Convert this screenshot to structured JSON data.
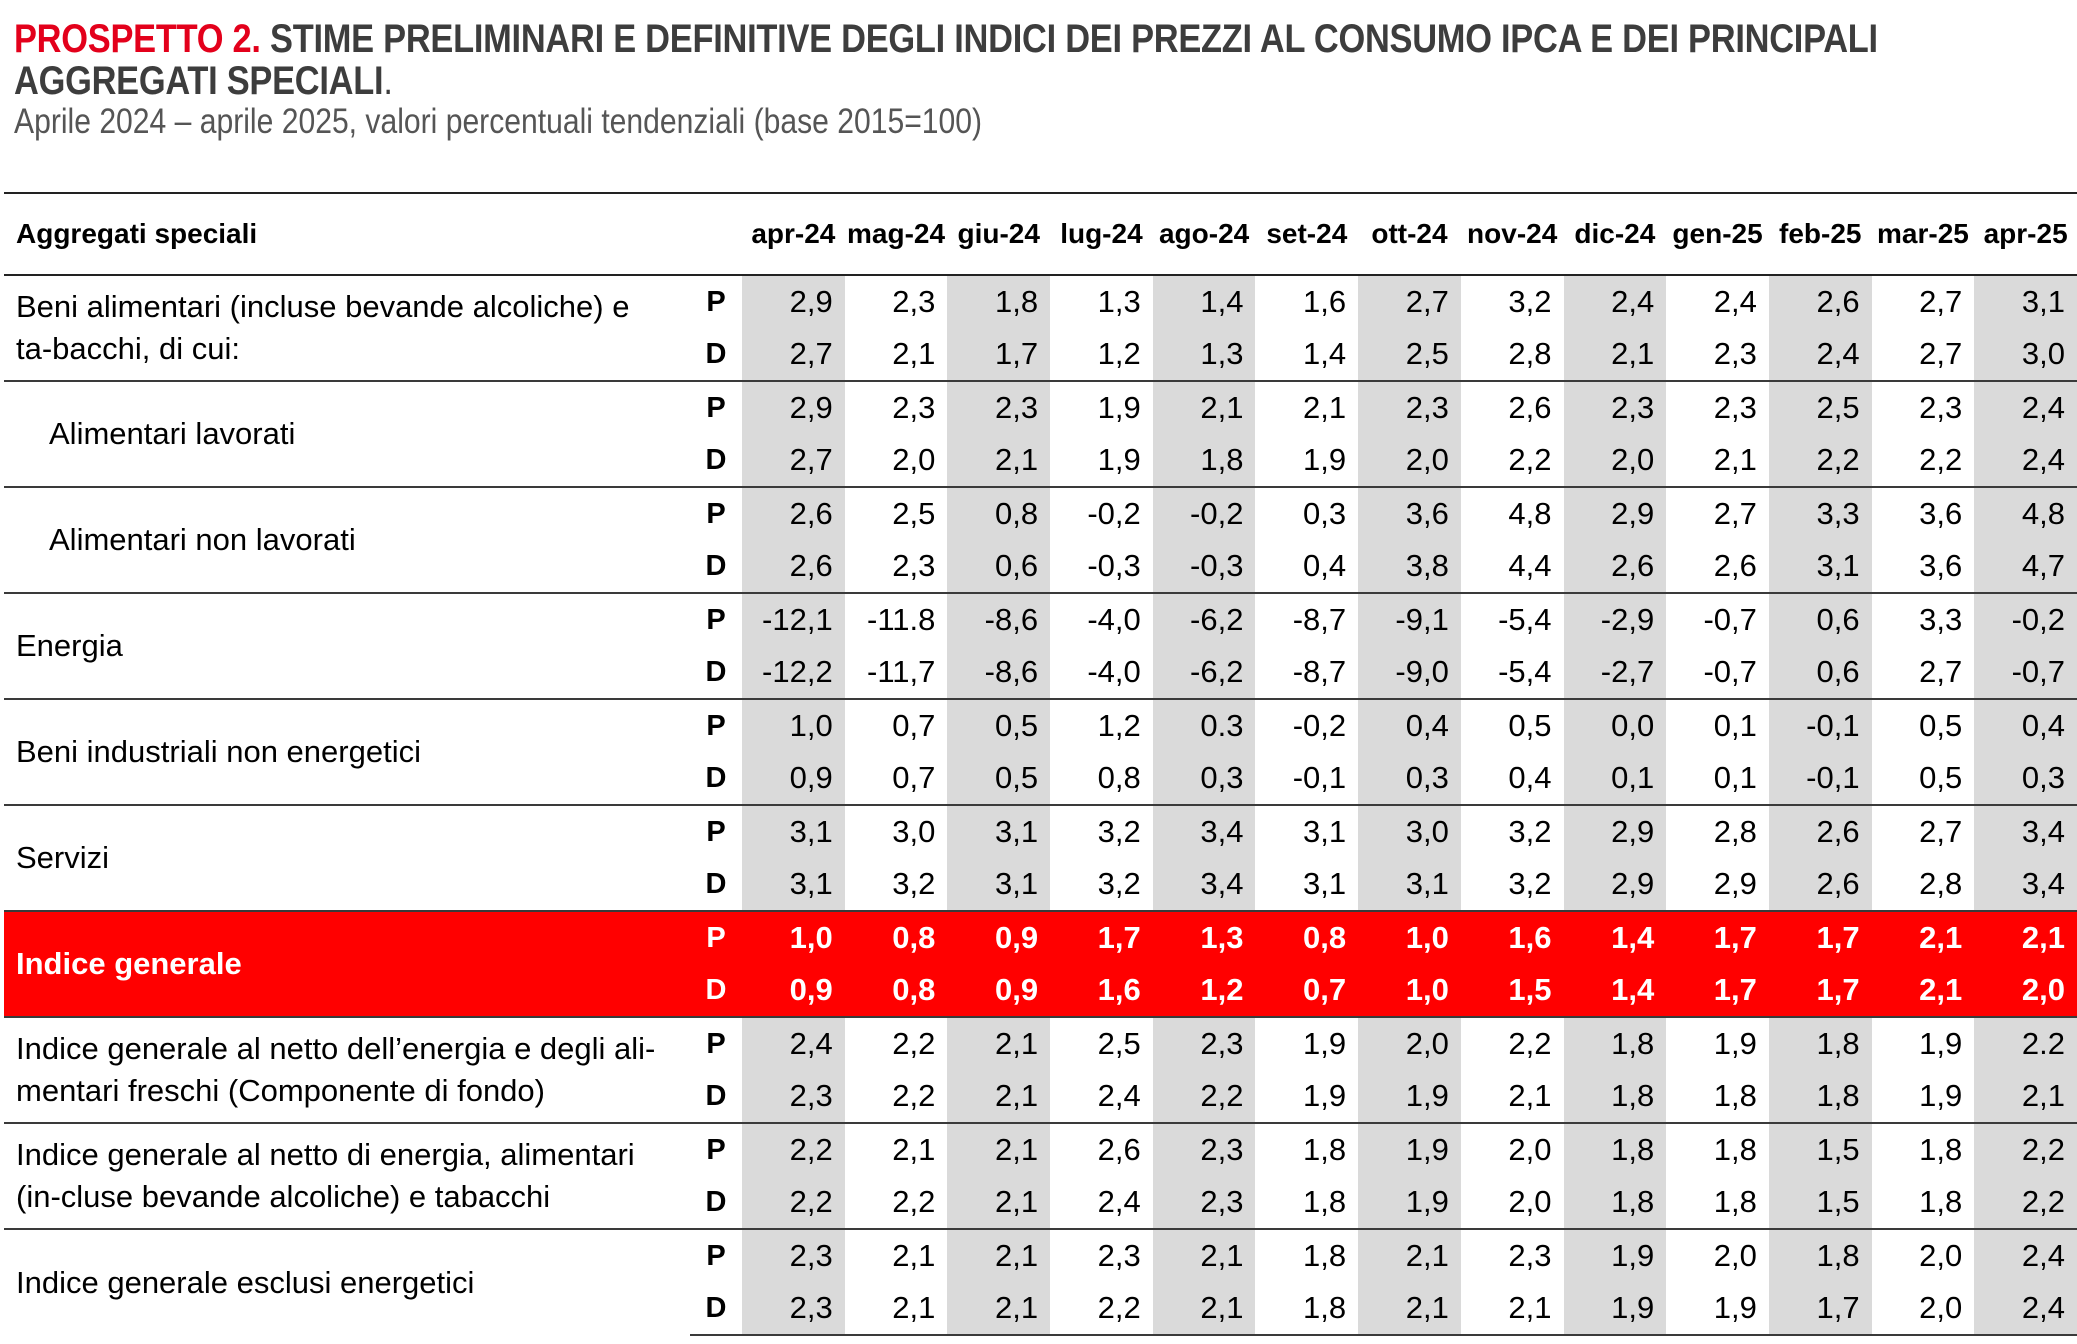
{
  "header": {
    "prefix": "PROSPETTO 2.",
    "title": "STIME PRELIMINARI E DEFINITIVE DEGLI INDICI DEI PREZZI AL CONSUMO IPCA E DEI PRINCIPALI AGGREGATI SPECIALI",
    "title_end": ".",
    "subtitle": "Aprile 2024 – aprile 2025, valori percentuali tendenziali (base 2015=100)"
  },
  "table": {
    "label_header": "Aggregati speciali",
    "months": [
      "apr-24",
      "mag-24",
      "giu-24",
      "lug-24",
      "ago-24",
      "set-24",
      "ott-24",
      "nov-24",
      "dic-24",
      "gen-25",
      "feb-25",
      "mar-25",
      "apr-25"
    ],
    "groups": [
      {
        "label": "Beni alimentari (incluse bevande alcoliche) e ta-bacchi, di cui:",
        "P_label": "P",
        "D_label": "D",
        "P": [
          "2,9",
          "2,3",
          "1,8",
          "1,3",
          "1,4",
          "1,6",
          "2,7",
          "3,2",
          "2,4",
          "2,4",
          "2,6",
          "2,7",
          "3,1"
        ],
        "D": [
          "2,7",
          "2,1",
          "1,7",
          "1,2",
          "1,3",
          "1,4",
          "2,5",
          "2,8",
          "2,1",
          "2,3",
          "2,4",
          "2,7",
          "3,0"
        ]
      },
      {
        "label": "Alimentari lavorati",
        "P_label": "P",
        "D_label": "D",
        "P": [
          "2,9",
          "2,3",
          "2,3",
          "1,9",
          "2,1",
          "2,1",
          "2,3",
          "2,6",
          "2,3",
          "2,3",
          "2,5",
          "2,3",
          "2,4"
        ],
        "D": [
          "2,7",
          "2,0",
          "2,1",
          "1,9",
          "1,8",
          "1,9",
          "2,0",
          "2,2",
          "2,0",
          "2,1",
          "2,2",
          "2,2",
          "2,4"
        ]
      },
      {
        "label": "Alimentari non lavorati",
        "P_label": "P",
        "D_label": "D",
        "P": [
          "2,6",
          "2,5",
          "0,8",
          "-0,2",
          "-0,2",
          "0,3",
          "3,6",
          "4,8",
          "2,9",
          "2,7",
          "3,3",
          "3,6",
          "4,8"
        ],
        "D": [
          "2,6",
          "2,3",
          "0,6",
          "-0,3",
          "-0,3",
          "0,4",
          "3,8",
          "4,4",
          "2,6",
          "2,6",
          "3,1",
          "3,6",
          "4,7"
        ]
      },
      {
        "label": "Energia",
        "P_label": "P",
        "D_label": "D",
        "P": [
          "-12,1",
          "-11.8",
          "-8,6",
          "-4,0",
          "-6,2",
          "-8,7",
          "-9,1",
          "-5,4",
          "-2,9",
          "-0,7",
          "0,6",
          "3,3",
          "-0,2"
        ],
        "D": [
          "-12,2",
          "-11,7",
          "-8,6",
          "-4,0",
          "-6,2",
          "-8,7",
          "-9,0",
          "-5,4",
          "-2,7",
          "-0,7",
          "0,6",
          "2,7",
          "-0,7"
        ]
      },
      {
        "label": "Beni industriali non energetici",
        "P_label": "P",
        "D_label": "D",
        "P": [
          "1,0",
          "0,7",
          "0,5",
          "1,2",
          "0.3",
          "-0,2",
          "0,4",
          "0,5",
          "0,0",
          "0,1",
          "-0,1",
          "0,5",
          "0,4"
        ],
        "D": [
          "0,9",
          "0,7",
          "0,5",
          "0,8",
          "0,3",
          "-0,1",
          "0,3",
          "0,4",
          "0,1",
          "0,1",
          "-0,1",
          "0,5",
          "0,3"
        ]
      },
      {
        "label": "Servizi",
        "P_label": "P",
        "D_label": "D",
        "P": [
          "3,1",
          "3,0",
          "3,1",
          "3,2",
          "3,4",
          "3,1",
          "3,0",
          "3,2",
          "2,9",
          "2,8",
          "2,6",
          "2,7",
          "3,4"
        ],
        "D": [
          "3,1",
          "3,2",
          "3,1",
          "3,2",
          "3,4",
          "3,1",
          "3,1",
          "3,2",
          "2,9",
          "2,9",
          "2,6",
          "2,8",
          "3,4"
        ]
      },
      {
        "label": "Indice generale",
        "P_label": "P",
        "D_label": "D",
        "P": [
          "1,0",
          "0,8",
          "0,9",
          "1,7",
          "1,3",
          "0,8",
          "1,0",
          "1,6",
          "1,4",
          "1,7",
          "1,7",
          "2,1",
          "2,1"
        ],
        "D": [
          "0,9",
          "0,8",
          "0,9",
          "1,6",
          "1,2",
          "0,7",
          "1,0",
          "1,5",
          "1,4",
          "1,7",
          "1,7",
          "2,1",
          "2,0"
        ]
      },
      {
        "label": "Indice generale al netto dell’energia e degli ali-mentari freschi (Componente di fondo)",
        "P_label": "P",
        "D_label": "D",
        "P": [
          "2,4",
          "2,2",
          "2,1",
          "2,5",
          "2,3",
          "1,9",
          "2,0",
          "2,2",
          "1,8",
          "1,9",
          "1,8",
          "1,9",
          "2.2"
        ],
        "D": [
          "2,3",
          "2,2",
          "2,1",
          "2,4",
          "2,2",
          "1,9",
          "1,9",
          "2,1",
          "1,8",
          "1,8",
          "1,8",
          "1,9",
          "2,1"
        ]
      },
      {
        "label": "Indice generale al netto di energia, alimentari (in-cluse bevande alcoliche) e tabacchi",
        "P_label": "P",
        "D_label": "D",
        "P": [
          "2,2",
          "2,1",
          "2,1",
          "2,6",
          "2,3",
          "1,8",
          "1,9",
          "2,0",
          "1,8",
          "1,8",
          "1,5",
          "1,8",
          "2,2"
        ],
        "D": [
          "2,2",
          "2,2",
          "2,1",
          "2,4",
          "2,3",
          "1,8",
          "1,9",
          "2,0",
          "1,8",
          "1,8",
          "1,5",
          "1,8",
          "2,2"
        ]
      },
      {
        "label": "Indice generale esclusi energetici",
        "P_label": "P",
        "D_label": "D",
        "P": [
          "2,3",
          "2,1",
          "2,1",
          "2,3",
          "2,1",
          "1,8",
          "2,1",
          "2,3",
          "1,9",
          "2,0",
          "1,8",
          "2,0",
          "2,4"
        ],
        "D": [
          "2,3",
          "2,1",
          "2,1",
          "2,2",
          "2,1",
          "1,8",
          "2,1",
          "2,1",
          "1,9",
          "1,9",
          "1,7",
          "2,0",
          "2,4"
        ]
      }
    ]
  }
}
